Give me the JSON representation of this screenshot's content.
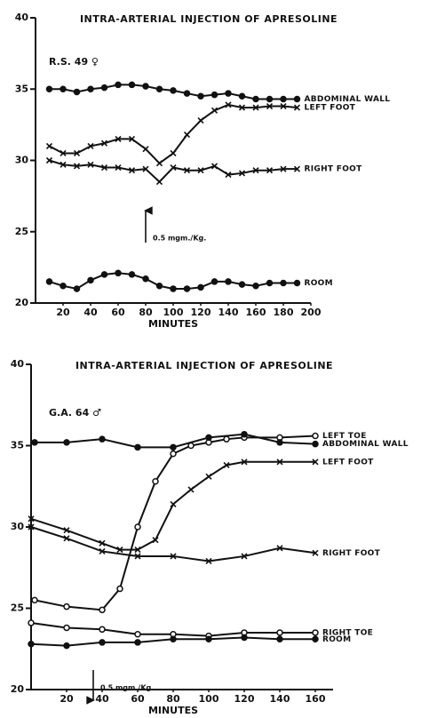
{
  "chart_data": [
    {
      "type": "line",
      "title": "INTRA-ARTERIAL INJECTION OF APRESOLINE",
      "subtitle": "R.S. 49 ♀",
      "xlabel": "MINUTES",
      "x": [
        10,
        20,
        30,
        40,
        50,
        60,
        70,
        80,
        90,
        100,
        110,
        120,
        130,
        140,
        150,
        160,
        170,
        180,
        190
      ],
      "series": [
        {
          "name": "ABDOMINAL WALL",
          "marker": "dot",
          "color": "#111111",
          "values": [
            35.0,
            35.0,
            34.8,
            35.0,
            35.1,
            35.3,
            35.3,
            35.2,
            35.0,
            34.9,
            34.7,
            34.5,
            34.6,
            34.7,
            34.5,
            34.3,
            34.3,
            34.3,
            34.3
          ]
        },
        {
          "name": "LEFT FOOT",
          "marker": "x",
          "color": "#111111",
          "values": [
            31.0,
            30.5,
            30.5,
            31.0,
            31.2,
            31.5,
            31.5,
            30.8,
            29.8,
            30.5,
            31.8,
            32.8,
            33.5,
            33.9,
            33.7,
            33.7,
            33.8,
            33.8,
            33.7
          ]
        },
        {
          "name": "RIGHT FOOT",
          "marker": "x",
          "color": "#111111",
          "values": [
            30.0,
            29.7,
            29.6,
            29.7,
            29.5,
            29.5,
            29.3,
            29.4,
            28.5,
            29.5,
            29.3,
            29.3,
            29.6,
            29.0,
            29.1,
            29.3,
            29.3,
            29.4,
            29.4
          ]
        },
        {
          "name": "ROOM",
          "marker": "dot",
          "color": "#111111",
          "values": [
            21.5,
            21.2,
            21.0,
            21.6,
            22.0,
            22.1,
            22.0,
            21.7,
            21.2,
            21.0,
            21.0,
            21.1,
            21.5,
            21.5,
            21.3,
            21.2,
            21.4,
            21.4,
            21.4
          ]
        }
      ],
      "annotation": {
        "text": "0.5 mgm./Kg.",
        "x": 80
      },
      "xlim": [
        0,
        200
      ],
      "xticks": [
        20,
        40,
        60,
        80,
        100,
        120,
        140,
        160,
        180,
        200
      ],
      "ylim": [
        20,
        40
      ],
      "yticks": [
        20,
        25,
        30,
        35,
        40
      ]
    },
    {
      "type": "line",
      "title": "INTRA-ARTERIAL INJECTION OF APRESOLINE",
      "subtitle": "G.A. 64 ♂",
      "xlabel": "MINUTES",
      "series": [
        {
          "name": "LEFT TOE",
          "marker": "circle",
          "color": "#111111",
          "x": [
            2,
            20,
            40,
            50,
            60,
            70,
            80,
            90,
            100,
            110,
            120,
            140,
            160
          ],
          "values": [
            25.5,
            25.1,
            24.9,
            26.2,
            30.0,
            32.8,
            34.5,
            35.0,
            35.2,
            35.4,
            35.5,
            35.5,
            35.6
          ]
        },
        {
          "name": "ABDOMINAL WALL",
          "marker": "dot",
          "color": "#111111",
          "x": [
            2,
            20,
            40,
            60,
            80,
            100,
            120,
            140,
            160
          ],
          "values": [
            35.2,
            35.2,
            35.4,
            34.9,
            34.9,
            35.5,
            35.7,
            35.2,
            35.1
          ]
        },
        {
          "name": "LEFT FOOT",
          "marker": "x",
          "color": "#111111",
          "x": [
            0,
            20,
            40,
            50,
            60,
            70,
            80,
            90,
            100,
            110,
            120,
            140,
            160
          ],
          "values": [
            30.5,
            29.8,
            29.0,
            28.6,
            28.6,
            29.2,
            31.4,
            32.3,
            33.1,
            33.8,
            34.0,
            34.0,
            34.0
          ]
        },
        {
          "name": "RIGHT FOOT",
          "marker": "x",
          "color": "#111111",
          "x": [
            0,
            20,
            40,
            60,
            80,
            100,
            120,
            140,
            160
          ],
          "values": [
            30.0,
            29.3,
            28.5,
            28.2,
            28.2,
            27.9,
            28.2,
            28.7,
            28.4
          ]
        },
        {
          "name": "RIGHT TOE",
          "marker": "circle",
          "color": "#111111",
          "x": [
            0,
            20,
            40,
            60,
            80,
            100,
            120,
            140,
            160
          ],
          "values": [
            24.1,
            23.8,
            23.7,
            23.4,
            23.4,
            23.3,
            23.5,
            23.5,
            23.5
          ]
        },
        {
          "name": "ROOM",
          "marker": "dot",
          "color": "#111111",
          "x": [
            0,
            20,
            40,
            60,
            80,
            100,
            120,
            140,
            160
          ],
          "values": [
            22.8,
            22.7,
            22.9,
            22.9,
            23.1,
            23.1,
            23.2,
            23.1,
            23.1
          ]
        }
      ],
      "annotation": {
        "text": "0.5 mgm./Kg.",
        "x": 35
      },
      "xlim": [
        0,
        170
      ],
      "xticks": [
        20,
        40,
        60,
        80,
        100,
        120,
        140,
        160
      ],
      "ylim": [
        20,
        40
      ],
      "yticks": [
        20,
        25,
        30,
        35,
        40
      ]
    }
  ]
}
